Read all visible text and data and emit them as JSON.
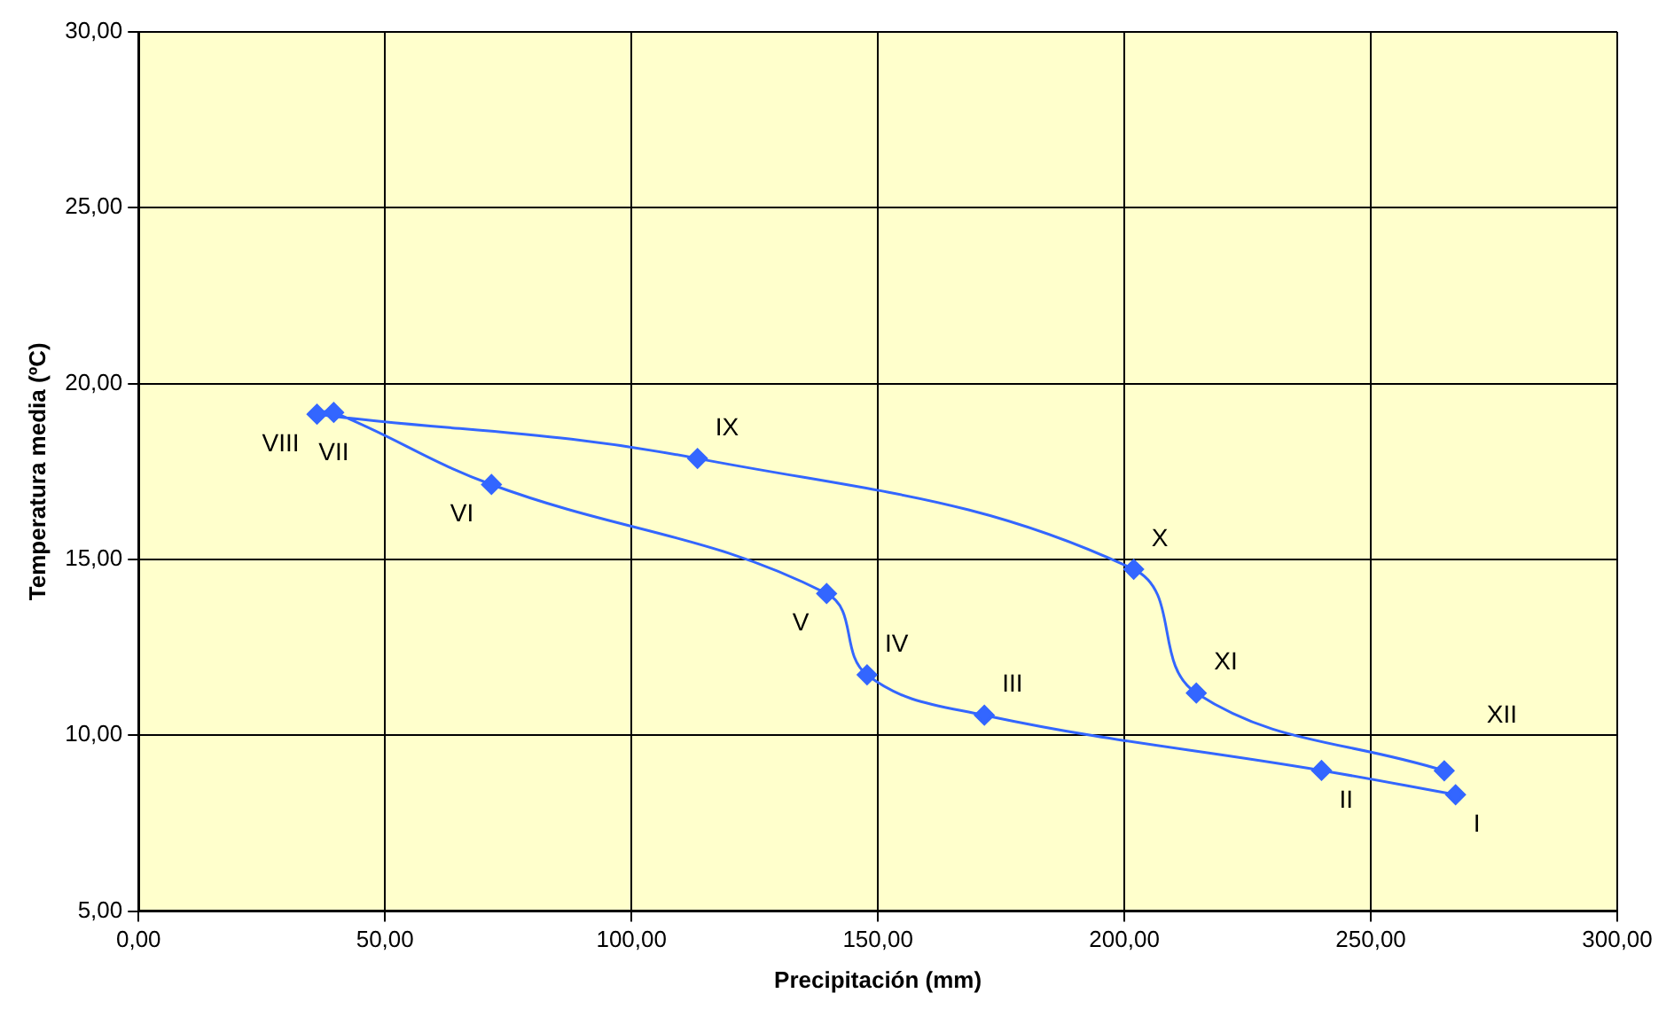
{
  "chart_data": {
    "type": "line",
    "xlabel": "Precipitación (mm)",
    "ylabel": "Temperatura media (ºC)",
    "series": [
      {
        "color": "#3366ff",
        "x": [
          267.2,
          240.0,
          171.6,
          147.8,
          139.6,
          71.6,
          39.6,
          36.2,
          113.4,
          201.9,
          214.6,
          264.9
        ],
        "values": [
          8.31,
          9.0,
          10.57,
          11.72,
          14.03,
          17.13,
          19.18,
          19.13,
          17.87,
          14.72,
          11.2,
          8.99
        ]
      }
    ],
    "annotations": [
      {
        "text": "I",
        "x": 267.2,
        "y": 8.31
      },
      {
        "text": "II",
        "x": 240.0,
        "y": 9.0
      },
      {
        "text": "III",
        "x": 171.6,
        "y": 10.57
      },
      {
        "text": "IV",
        "x": 147.8,
        "y": 11.72
      },
      {
        "text": "V",
        "x": 139.6,
        "y": 14.03
      },
      {
        "text": "VI",
        "x": 71.6,
        "y": 17.13
      },
      {
        "text": "VII",
        "x": 39.6,
        "y": 19.18
      },
      {
        "text": "VIII",
        "x": 36.2,
        "y": 19.13
      },
      {
        "text": "IX",
        "x": 113.4,
        "y": 17.87
      },
      {
        "text": "X",
        "x": 201.9,
        "y": 14.72
      },
      {
        "text": "XI",
        "x": 214.6,
        "y": 11.2
      },
      {
        "text": "XII",
        "x": 264.9,
        "y": 8.99
      }
    ],
    "xlim": [
      0,
      300
    ],
    "xticks": [
      {
        "value": 0,
        "label": "0,00"
      },
      {
        "value": 50,
        "label": "50,00"
      },
      {
        "value": 100,
        "label": "100,00"
      },
      {
        "value": 150,
        "label": "150,00"
      },
      {
        "value": 200,
        "label": "200,00"
      },
      {
        "value": 250,
        "label": "250,00"
      },
      {
        "value": 300,
        "label": "300,00"
      }
    ],
    "ylim": [
      5,
      30
    ],
    "yticks": [
      {
        "value": 5,
        "label": "5,00"
      },
      {
        "value": 10,
        "label": "10,00"
      },
      {
        "value": 15,
        "label": "15,00"
      },
      {
        "value": 20,
        "label": "20,00"
      },
      {
        "value": 25,
        "label": "25,00"
      },
      {
        "value": 30,
        "label": "30,00"
      }
    ],
    "grid": true,
    "legend": false,
    "marker": "diamond",
    "line_style": "solid"
  }
}
